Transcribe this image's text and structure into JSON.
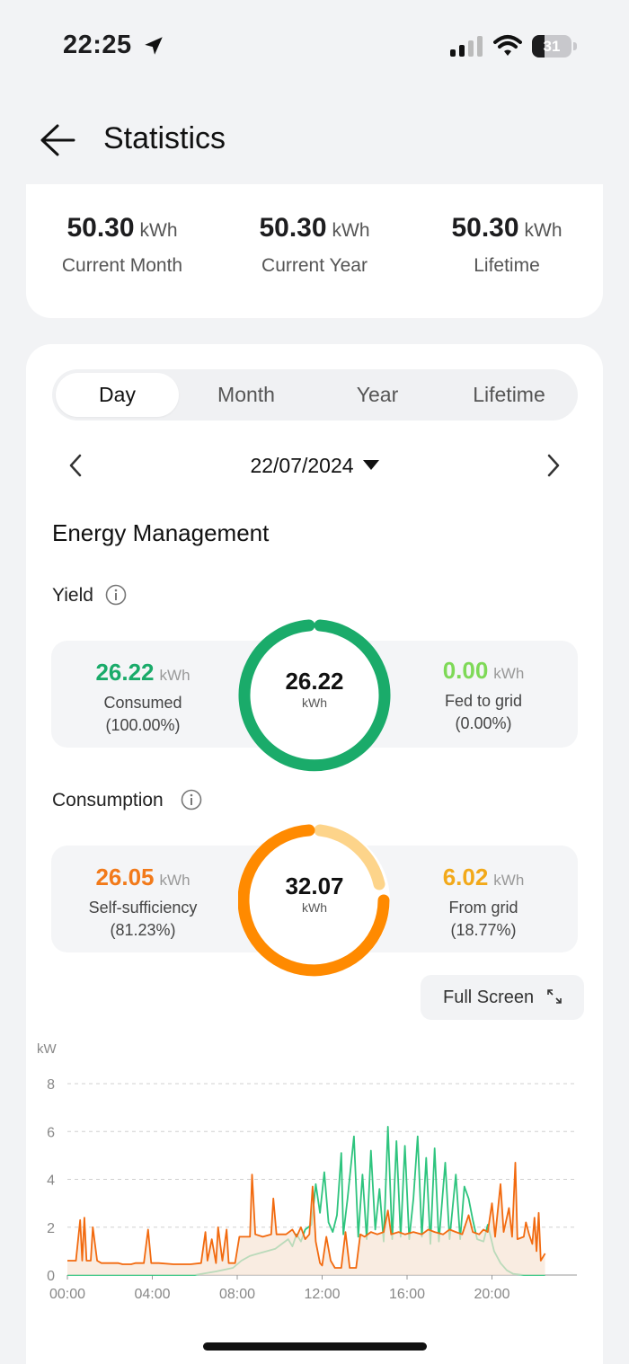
{
  "status_bar": {
    "time": "22:25",
    "battery": "31",
    "battery_level": 0.31
  },
  "header": {
    "title": "Statistics"
  },
  "summary": [
    {
      "value": "50.30",
      "unit": "kWh",
      "label": "Current Month"
    },
    {
      "value": "50.30",
      "unit": "kWh",
      "label": "Current Year"
    },
    {
      "value": "50.30",
      "unit": "kWh",
      "label": "Lifetime"
    }
  ],
  "tabs": [
    "Day",
    "Month",
    "Year",
    "Lifetime"
  ],
  "active_tab": "Day",
  "date": "22/07/2024",
  "section_title": "Energy Management",
  "yield": {
    "title": "Yield",
    "total_value": "26.22",
    "total_unit": "kWh",
    "consumed": {
      "value": "26.22",
      "unit": "kWh",
      "label": "Consumed",
      "pct": "(100.00%)"
    },
    "fed": {
      "value": "0.00",
      "unit": "kWh",
      "label": "Fed to grid",
      "pct": "(0.00%)"
    },
    "colors": {
      "primary": "#1aab6a",
      "secondary": "#7ed957"
    }
  },
  "consumption": {
    "title": "Consumption",
    "total_value": "32.07",
    "total_unit": "kWh",
    "self": {
      "value": "26.05",
      "unit": "kWh",
      "label": "Self-sufficiency",
      "pct": "(81.23%)"
    },
    "grid": {
      "value": "6.02",
      "unit": "kWh",
      "label": "From grid",
      "pct": "(18.77%)"
    },
    "colors": {
      "primary": "#ff8a00",
      "secondary": "#fdd48a"
    }
  },
  "fullscreen_label": "Full Screen",
  "chart_data": {
    "type": "line",
    "ylabel": "kW",
    "ylim": [
      0,
      8
    ],
    "y_ticks": [
      "0",
      "2",
      "4",
      "6",
      "8"
    ],
    "x_ticks": [
      "00:00",
      "04:00",
      "08:00",
      "12:00",
      "16:00",
      "20:00"
    ],
    "x_tick_hours": [
      0,
      4,
      8,
      12,
      16,
      20
    ],
    "x_range_hours": [
      0,
      24
    ],
    "grid": true,
    "series": [
      {
        "color": "#2ec47e",
        "points": [
          [
            0.0,
            0.0
          ],
          [
            6.0,
            0.0
          ],
          [
            7.0,
            0.15
          ],
          [
            7.8,
            0.3
          ],
          [
            8.2,
            0.6
          ],
          [
            8.6,
            0.8
          ],
          [
            9.0,
            0.9
          ],
          [
            9.4,
            1.0
          ],
          [
            9.8,
            1.1
          ],
          [
            10.1,
            1.3
          ],
          [
            10.4,
            1.5
          ],
          [
            10.6,
            1.2
          ],
          [
            10.8,
            1.7
          ],
          [
            11.0,
            1.4
          ],
          [
            11.2,
            1.9
          ],
          [
            11.5,
            2.1
          ],
          [
            11.7,
            3.8
          ],
          [
            11.9,
            2.6
          ],
          [
            12.1,
            4.3
          ],
          [
            12.3,
            2.2
          ],
          [
            12.5,
            1.8
          ],
          [
            12.7,
            2.5
          ],
          [
            12.9,
            5.1
          ],
          [
            13.0,
            1.7
          ],
          [
            13.2,
            3.2
          ],
          [
            13.5,
            5.8
          ],
          [
            13.7,
            1.6
          ],
          [
            13.9,
            4.2
          ],
          [
            14.1,
            1.5
          ],
          [
            14.3,
            5.2
          ],
          [
            14.5,
            1.9
          ],
          [
            14.7,
            3.6
          ],
          [
            14.9,
            1.4
          ],
          [
            15.1,
            6.2
          ],
          [
            15.3,
            1.5
          ],
          [
            15.5,
            5.6
          ],
          [
            15.7,
            1.6
          ],
          [
            15.9,
            5.4
          ],
          [
            16.1,
            1.5
          ],
          [
            16.3,
            3.2
          ],
          [
            16.5,
            5.8
          ],
          [
            16.7,
            1.6
          ],
          [
            16.9,
            4.9
          ],
          [
            17.1,
            1.3
          ],
          [
            17.3,
            5.3
          ],
          [
            17.5,
            1.4
          ],
          [
            17.8,
            4.7
          ],
          [
            18.0,
            1.5
          ],
          [
            18.3,
            4.2
          ],
          [
            18.5,
            1.5
          ],
          [
            18.7,
            3.7
          ],
          [
            18.9,
            3.2
          ],
          [
            19.1,
            2.3
          ],
          [
            19.3,
            1.5
          ],
          [
            19.6,
            1.4
          ],
          [
            19.8,
            2.1
          ],
          [
            20.1,
            1.0
          ],
          [
            20.4,
            0.5
          ],
          [
            20.7,
            0.2
          ],
          [
            21.0,
            0.05
          ],
          [
            21.5,
            0.0
          ],
          [
            22.5,
            0.0
          ]
        ]
      },
      {
        "color": "#f26a0f",
        "points": [
          [
            0.0,
            0.6
          ],
          [
            0.4,
            0.6
          ],
          [
            0.6,
            2.3
          ],
          [
            0.7,
            0.6
          ],
          [
            0.8,
            2.4
          ],
          [
            0.9,
            0.6
          ],
          [
            1.1,
            0.6
          ],
          [
            1.2,
            2.0
          ],
          [
            1.4,
            0.6
          ],
          [
            1.6,
            0.5
          ],
          [
            2.4,
            0.5
          ],
          [
            2.6,
            0.45
          ],
          [
            3.0,
            0.45
          ],
          [
            3.2,
            0.5
          ],
          [
            3.6,
            0.5
          ],
          [
            3.8,
            1.9
          ],
          [
            3.95,
            0.5
          ],
          [
            4.3,
            0.5
          ],
          [
            5.0,
            0.45
          ],
          [
            5.8,
            0.45
          ],
          [
            6.3,
            0.5
          ],
          [
            6.5,
            1.8
          ],
          [
            6.6,
            0.6
          ],
          [
            6.8,
            1.5
          ],
          [
            7.0,
            0.5
          ],
          [
            7.1,
            2.0
          ],
          [
            7.3,
            0.6
          ],
          [
            7.5,
            1.9
          ],
          [
            7.6,
            0.5
          ],
          [
            7.9,
            0.5
          ],
          [
            8.1,
            1.6
          ],
          [
            8.4,
            1.6
          ],
          [
            8.6,
            1.6
          ],
          [
            8.7,
            4.2
          ],
          [
            8.85,
            1.7
          ],
          [
            9.2,
            1.6
          ],
          [
            9.6,
            1.7
          ],
          [
            9.7,
            3.2
          ],
          [
            9.85,
            1.7
          ],
          [
            10.3,
            1.7
          ],
          [
            10.6,
            1.9
          ],
          [
            10.8,
            1.6
          ],
          [
            11.0,
            2.0
          ],
          [
            11.2,
            1.5
          ],
          [
            11.4,
            1.7
          ],
          [
            11.55,
            3.7
          ],
          [
            11.7,
            1.4
          ],
          [
            11.9,
            0.5
          ],
          [
            12.0,
            0.4
          ],
          [
            12.2,
            1.6
          ],
          [
            12.4,
            0.6
          ],
          [
            12.6,
            0.3
          ],
          [
            12.9,
            0.3
          ],
          [
            13.1,
            1.8
          ],
          [
            13.3,
            0.3
          ],
          [
            13.6,
            0.3
          ],
          [
            13.8,
            1.7
          ],
          [
            14.0,
            1.6
          ],
          [
            14.3,
            1.8
          ],
          [
            14.6,
            1.7
          ],
          [
            14.9,
            1.8
          ],
          [
            15.1,
            2.7
          ],
          [
            15.25,
            1.7
          ],
          [
            15.6,
            1.8
          ],
          [
            15.9,
            1.7
          ],
          [
            16.3,
            1.8
          ],
          [
            16.7,
            1.7
          ],
          [
            17.0,
            1.9
          ],
          [
            17.3,
            1.8
          ],
          [
            17.7,
            1.7
          ],
          [
            18.0,
            1.9
          ],
          [
            18.3,
            1.8
          ],
          [
            18.6,
            1.7
          ],
          [
            18.9,
            2.5
          ],
          [
            19.1,
            1.8
          ],
          [
            19.4,
            1.7
          ],
          [
            19.6,
            1.9
          ],
          [
            19.8,
            1.8
          ],
          [
            20.0,
            3.0
          ],
          [
            20.15,
            1.6
          ],
          [
            20.4,
            3.8
          ],
          [
            20.55,
            1.8
          ],
          [
            20.8,
            2.8
          ],
          [
            20.95,
            1.6
          ],
          [
            21.1,
            4.7
          ],
          [
            21.2,
            1.5
          ],
          [
            21.5,
            1.6
          ],
          [
            21.6,
            2.2
          ],
          [
            21.75,
            1.7
          ],
          [
            21.9,
            1.3
          ],
          [
            22.0,
            2.4
          ],
          [
            22.1,
            1.0
          ],
          [
            22.2,
            2.6
          ],
          [
            22.3,
            0.6
          ],
          [
            22.5,
            0.9
          ]
        ]
      }
    ]
  }
}
